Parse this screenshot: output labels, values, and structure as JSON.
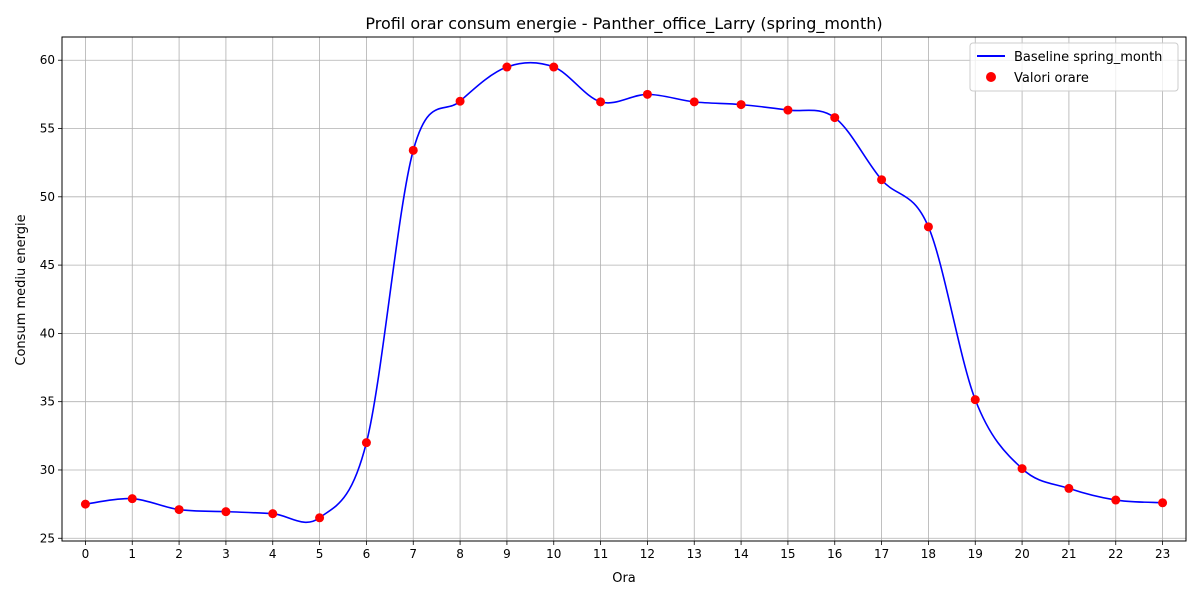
{
  "chart_data": {
    "type": "line",
    "title": "Profil orar consum energie - Panther_office_Larry (spring_month)",
    "xlabel": "Ora",
    "ylabel": "Consum mediu energie",
    "x": [
      0,
      1,
      2,
      3,
      4,
      5,
      6,
      7,
      8,
      9,
      10,
      11,
      12,
      13,
      14,
      15,
      16,
      17,
      18,
      19,
      20,
      21,
      22,
      23
    ],
    "xlim": [
      -0.5,
      23.5
    ],
    "ylim": [
      24.8,
      61.7
    ],
    "yticks": [
      25,
      30,
      35,
      40,
      45,
      50,
      55,
      60
    ],
    "grid": true,
    "legend_position": "top-right",
    "series": [
      {
        "name": "Baseline spring_month",
        "kind": "smooth-line",
        "color": "#0000ff",
        "values": [
          27.5,
          27.9,
          27.1,
          26.95,
          26.8,
          26.5,
          32.0,
          53.4,
          57.0,
          59.5,
          59.5,
          56.95,
          57.5,
          56.95,
          56.75,
          56.35,
          55.8,
          51.25,
          47.8,
          35.15,
          30.1,
          28.65,
          27.8,
          27.6
        ]
      },
      {
        "name": "Valori orare",
        "kind": "scatter",
        "color": "#ff0000",
        "values": [
          27.5,
          27.9,
          27.1,
          26.95,
          26.8,
          26.5,
          32.0,
          53.4,
          57.0,
          59.5,
          59.5,
          56.95,
          57.5,
          56.95,
          56.75,
          56.35,
          55.8,
          51.25,
          47.8,
          35.15,
          30.1,
          28.65,
          27.8,
          27.6
        ]
      }
    ]
  }
}
